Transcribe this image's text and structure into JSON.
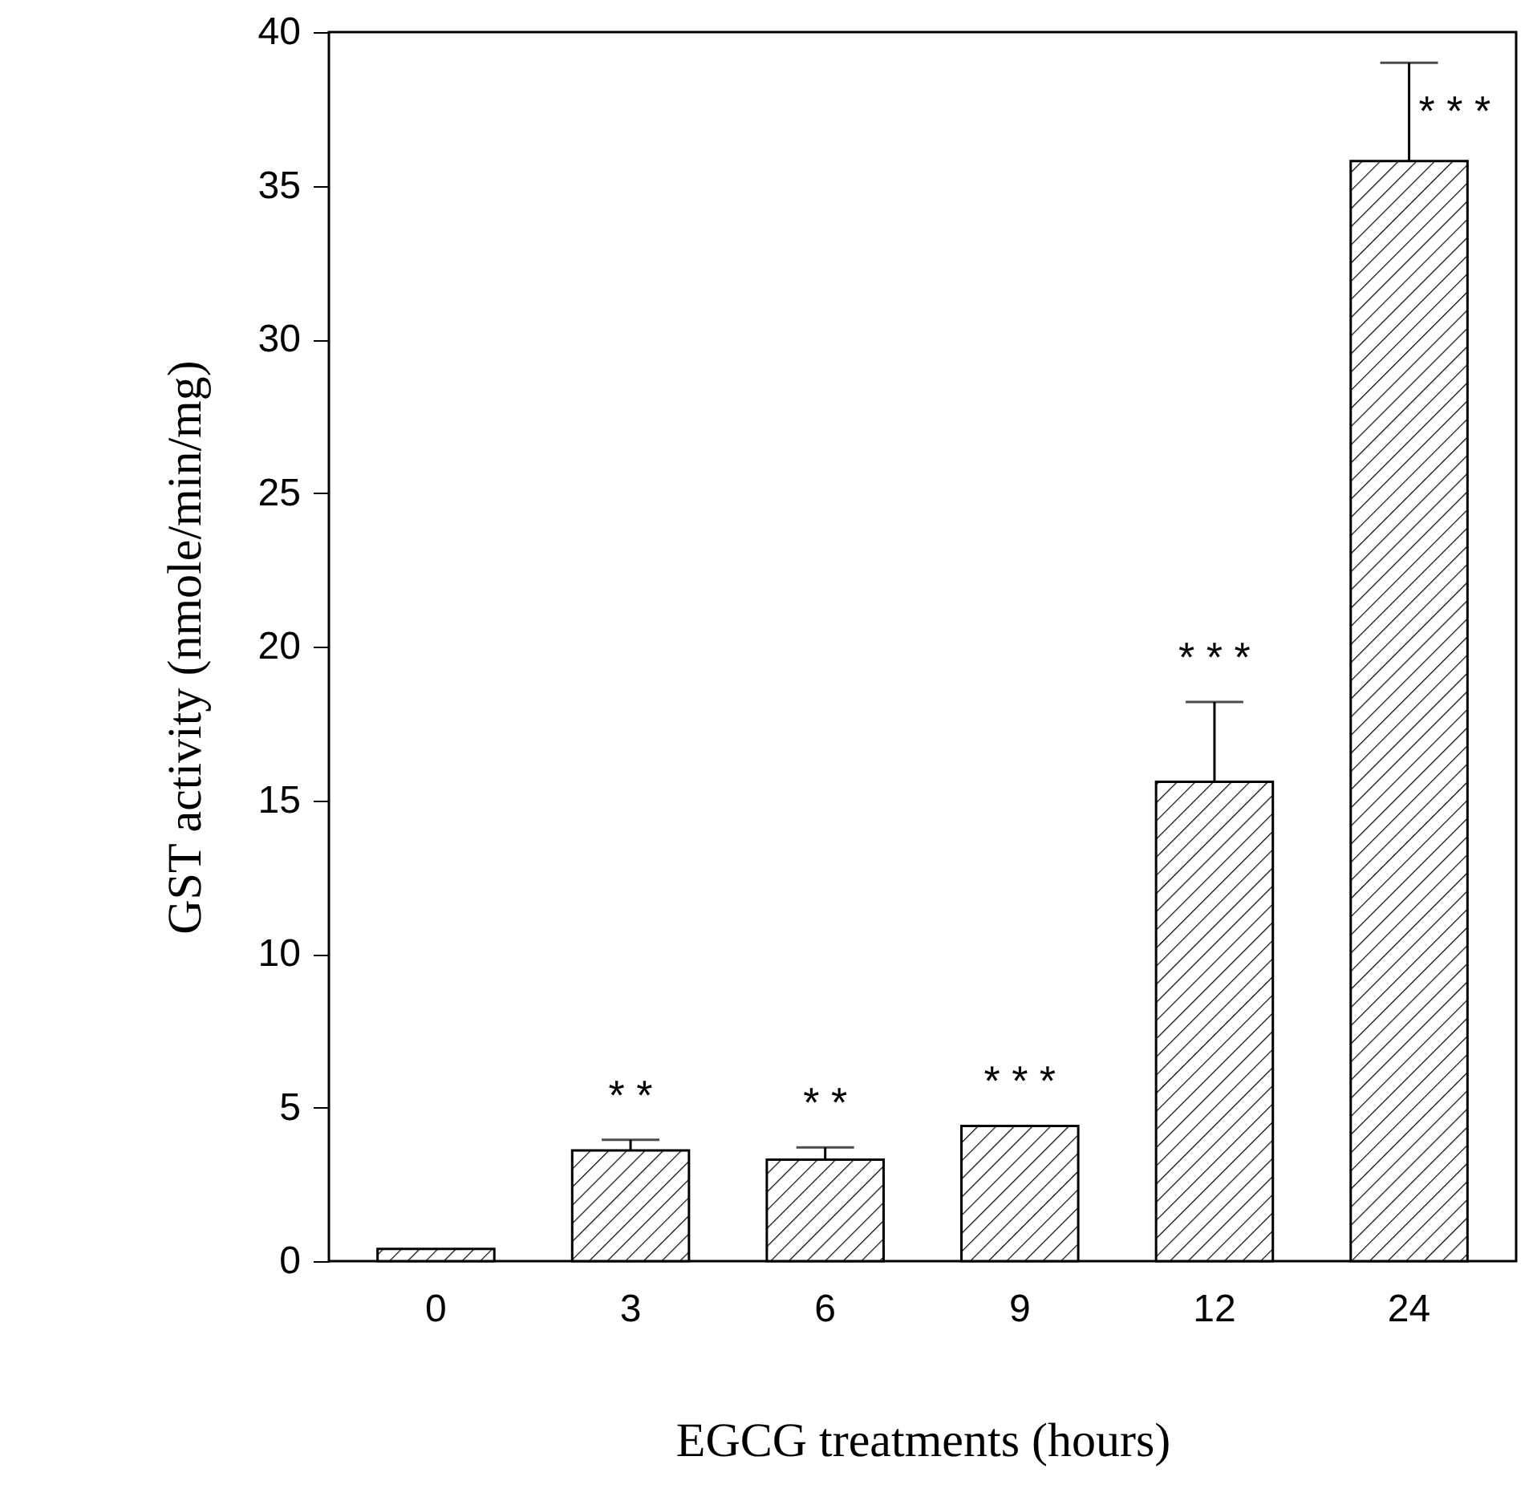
{
  "chart_data": {
    "type": "bar",
    "xlabel": "EGCG  treatments (hours)",
    "ylabel": "GST activity (nmole/min/mg)",
    "categories": [
      "0",
      "3",
      "6",
      "9",
      "12",
      "24"
    ],
    "values": [
      0.4,
      3.6,
      3.3,
      4.4,
      15.6,
      35.8
    ],
    "errors": [
      null,
      0.35,
      0.4,
      null,
      2.6,
      3.2
    ],
    "ylim": [
      0,
      40
    ],
    "yticks": [
      0,
      5,
      10,
      15,
      20,
      25,
      30,
      35,
      40
    ],
    "grid": false,
    "annotations": [
      "* *",
      "* *",
      "* * *",
      "* * *",
      "* * *"
    ]
  }
}
